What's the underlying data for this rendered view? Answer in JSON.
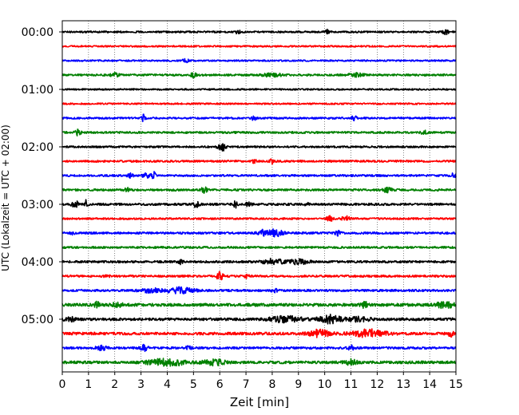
{
  "chart_data": {
    "type": "line",
    "subtype": "helicorder",
    "title": "",
    "xlabel": "Zeit  [min]",
    "ylabel": "UTC (Lokalzeit = UTC + 02:00)",
    "xlim": [
      0,
      15
    ],
    "x_ticks": [
      0,
      1,
      2,
      3,
      4,
      5,
      6,
      7,
      8,
      9,
      10,
      11,
      12,
      13,
      14,
      15
    ],
    "y_tick_labels": [
      "00:00",
      "01:00",
      "02:00",
      "03:00",
      "04:00",
      "05:00"
    ],
    "trace_interval_minutes": 15,
    "vertical_grid": true,
    "grid_style": "dotted",
    "color_cycle": [
      "#000000",
      "#ff0000",
      "#0000ff",
      "#008000"
    ],
    "traces": [
      {
        "start": "00:00",
        "noise": 0.14,
        "events": [
          [
            6.7,
            0.12,
            0.25
          ],
          [
            10.1,
            0.1,
            0.3
          ],
          [
            14.6,
            0.15,
            0.35
          ]
        ]
      },
      {
        "start": "00:15",
        "noise": 0.13,
        "events": []
      },
      {
        "start": "00:30",
        "noise": 0.13,
        "events": [
          [
            4.7,
            0.12,
            0.25
          ]
        ]
      },
      {
        "start": "00:45",
        "noise": 0.16,
        "events": [
          [
            2.0,
            0.15,
            0.3
          ],
          [
            5.0,
            0.08,
            0.8
          ],
          [
            8.0,
            0.4,
            0.25
          ],
          [
            11.2,
            0.3,
            0.25
          ]
        ]
      },
      {
        "start": "01:00",
        "noise": 0.13,
        "events": []
      },
      {
        "start": "01:15",
        "noise": 0.13,
        "events": []
      },
      {
        "start": "01:30",
        "noise": 0.15,
        "events": [
          [
            3.1,
            0.1,
            0.55
          ],
          [
            7.3,
            0.1,
            0.3
          ],
          [
            11.1,
            0.1,
            0.5
          ]
        ]
      },
      {
        "start": "01:45",
        "noise": 0.16,
        "events": [
          [
            0.6,
            0.12,
            0.45
          ],
          [
            13.8,
            0.12,
            0.4
          ]
        ]
      },
      {
        "start": "02:00",
        "noise": 0.15,
        "events": [
          [
            6.0,
            0.1,
            0.5
          ],
          [
            6.15,
            0.08,
            0.6
          ]
        ]
      },
      {
        "start": "02:15",
        "noise": 0.16,
        "events": [
          [
            7.3,
            0.1,
            0.25
          ],
          [
            8.0,
            0.1,
            0.35
          ]
        ]
      },
      {
        "start": "02:30",
        "noise": 0.16,
        "events": [
          [
            2.6,
            0.1,
            0.3
          ],
          [
            3.2,
            0.12,
            0.45
          ],
          [
            3.5,
            0.1,
            0.55
          ],
          [
            14.9,
            0.1,
            0.35
          ]
        ]
      },
      {
        "start": "02:45",
        "noise": 0.17,
        "events": [
          [
            2.5,
            0.12,
            0.3
          ],
          [
            5.4,
            0.1,
            0.55
          ],
          [
            12.4,
            0.15,
            0.4
          ]
        ]
      },
      {
        "start": "03:00",
        "noise": 0.18,
        "events": [
          [
            0.5,
            0.15,
            0.45
          ],
          [
            0.9,
            0.06,
            0.6
          ],
          [
            5.1,
            0.12,
            0.45
          ],
          [
            6.6,
            0.06,
            0.6
          ],
          [
            7.1,
            0.1,
            0.35
          ],
          [
            9.3,
            0.1,
            0.3
          ]
        ]
      },
      {
        "start": "03:15",
        "noise": 0.15,
        "events": [
          [
            10.2,
            0.12,
            0.45
          ],
          [
            10.8,
            0.15,
            0.4
          ]
        ]
      },
      {
        "start": "03:30",
        "noise": 0.17,
        "events": [
          [
            0.35,
            0.1,
            0.3
          ],
          [
            7.6,
            0.15,
            0.45
          ],
          [
            8.1,
            0.3,
            0.55
          ],
          [
            10.5,
            0.1,
            0.4
          ]
        ]
      },
      {
        "start": "03:45",
        "noise": 0.16,
        "events": []
      },
      {
        "start": "04:00",
        "noise": 0.18,
        "events": [
          [
            4.5,
            0.1,
            0.3
          ],
          [
            8.0,
            0.35,
            0.5
          ],
          [
            9.0,
            0.4,
            0.35
          ]
        ]
      },
      {
        "start": "04:15",
        "noise": 0.17,
        "events": [
          [
            1.7,
            0.1,
            0.25
          ],
          [
            6.0,
            0.12,
            0.75
          ],
          [
            7.0,
            0.1,
            0.3
          ]
        ]
      },
      {
        "start": "04:30",
        "noise": 0.18,
        "events": [
          [
            3.4,
            0.4,
            0.3
          ],
          [
            4.5,
            0.5,
            0.45
          ],
          [
            8.1,
            0.1,
            0.25
          ]
        ]
      },
      {
        "start": "04:45",
        "noise": 0.24,
        "events": [
          [
            1.3,
            0.1,
            0.55
          ],
          [
            2.1,
            0.2,
            0.3
          ],
          [
            11.5,
            0.15,
            0.45
          ],
          [
            14.6,
            0.3,
            0.55
          ]
        ]
      },
      {
        "start": "05:00",
        "noise": 0.22,
        "events": [
          [
            0.3,
            0.2,
            0.35
          ],
          [
            8.5,
            0.6,
            0.45
          ],
          [
            10.2,
            0.4,
            0.65
          ],
          [
            11.3,
            0.4,
            0.35
          ]
        ]
      },
      {
        "start": "05:15",
        "noise": 0.22,
        "events": [
          [
            9.8,
            0.4,
            0.55
          ],
          [
            11.7,
            0.6,
            0.6
          ],
          [
            14.8,
            0.1,
            0.4
          ]
        ]
      },
      {
        "start": "05:30",
        "noise": 0.18,
        "events": [
          [
            1.5,
            0.2,
            0.35
          ],
          [
            3.1,
            0.15,
            0.45
          ],
          [
            4.8,
            0.12,
            0.3
          ],
          [
            11.0,
            0.12,
            0.35
          ]
        ]
      },
      {
        "start": "05:45",
        "noise": 0.22,
        "events": [
          [
            3.5,
            0.4,
            0.35
          ],
          [
            4.2,
            0.5,
            0.45
          ],
          [
            5.8,
            0.4,
            0.4
          ],
          [
            11.0,
            0.2,
            0.45
          ]
        ]
      }
    ]
  }
}
